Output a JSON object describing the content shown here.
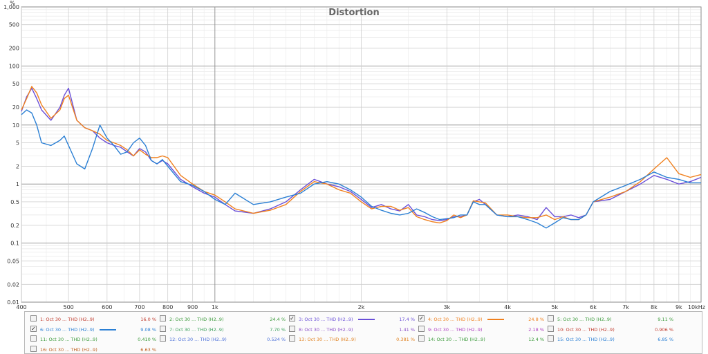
{
  "chart_data": {
    "type": "line",
    "title": "Distortion",
    "yunit": "%",
    "xscale": "log",
    "yscale": "log",
    "xlim": [
      400,
      10000
    ],
    "ylim": [
      0.01,
      1000
    ],
    "grid": true,
    "x_ticks": [
      {
        "v": 400,
        "t": "400"
      },
      {
        "v": 500,
        "t": "500"
      },
      {
        "v": 600,
        "t": "600"
      },
      {
        "v": 700,
        "t": "700"
      },
      {
        "v": 800,
        "t": "800"
      },
      {
        "v": 900,
        "t": "900"
      },
      {
        "v": 1000,
        "t": "1k"
      },
      {
        "v": 2000,
        "t": "2k"
      },
      {
        "v": 3000,
        "t": "3k"
      },
      {
        "v": 4000,
        "t": "4k"
      },
      {
        "v": 5000,
        "t": "5k"
      },
      {
        "v": 6000,
        "t": "6k"
      },
      {
        "v": 7000,
        "t": "7k"
      },
      {
        "v": 8000,
        "t": "8k"
      },
      {
        "v": 9000,
        "t": "9k"
      },
      {
        "v": 10000,
        "t": "10kHz"
      }
    ],
    "y_ticks": [
      {
        "v": 1000,
        "t": "1,000"
      },
      {
        "v": 500,
        "t": "500"
      },
      {
        "v": 200,
        "t": "200"
      },
      {
        "v": 100,
        "t": "100"
      },
      {
        "v": 50,
        "t": "50"
      },
      {
        "v": 20,
        "t": "20"
      },
      {
        "v": 10,
        "t": "10"
      },
      {
        "v": 5,
        "t": "5"
      },
      {
        "v": 2,
        "t": "2"
      },
      {
        "v": 1,
        "t": "1"
      },
      {
        "v": 0.5,
        "t": "0.5"
      },
      {
        "v": 0.2,
        "t": "0.2"
      },
      {
        "v": 0.1,
        "t": "0.1"
      },
      {
        "v": 0.05,
        "t": "0.05"
      },
      {
        "v": 0.02,
        "t": "0.02"
      },
      {
        "v": 0.01,
        "t": "0.01"
      }
    ],
    "series": [
      {
        "name": "3: Oct 30 ... THD (H2..9)",
        "color": "#6a4fd8",
        "x": [
          400,
          410,
          420,
          430,
          440,
          460,
          480,
          490,
          500,
          520,
          540,
          560,
          580,
          600,
          620,
          640,
          660,
          680,
          700,
          720,
          740,
          760,
          780,
          800,
          850,
          900,
          950,
          1000,
          1050,
          1100,
          1200,
          1300,
          1400,
          1500,
          1600,
          1700,
          1800,
          1900,
          2000,
          2100,
          2200,
          2300,
          2400,
          2500,
          2600,
          2700,
          2800,
          2900,
          3000,
          3100,
          3200,
          3300,
          3400,
          3500,
          3600,
          3800,
          4000,
          4200,
          4400,
          4600,
          4800,
          5000,
          5200,
          5400,
          5600,
          5800,
          6000,
          6500,
          7000,
          7500,
          8000,
          8500,
          9000,
          9500,
          10000
        ],
        "y": [
          17,
          30,
          42,
          28,
          18,
          12,
          20,
          32,
          42,
          12,
          9,
          8,
          6,
          5,
          4.5,
          4.2,
          3.5,
          3,
          4,
          3.5,
          2.5,
          2.2,
          2.5,
          2.2,
          1.2,
          0.9,
          0.7,
          0.6,
          0.45,
          0.35,
          0.32,
          0.38,
          0.5,
          0.8,
          1.2,
          1.0,
          0.9,
          0.75,
          0.55,
          0.4,
          0.45,
          0.38,
          0.35,
          0.45,
          0.3,
          0.28,
          0.25,
          0.24,
          0.25,
          0.28,
          0.28,
          0.3,
          0.5,
          0.55,
          0.45,
          0.3,
          0.28,
          0.3,
          0.28,
          0.25,
          0.4,
          0.28,
          0.28,
          0.3,
          0.27,
          0.3,
          0.5,
          0.55,
          0.75,
          1.0,
          1.4,
          1.2,
          1.0,
          1.1,
          1.3
        ]
      },
      {
        "name": "4: Oct 30 ... THD (H2..9)",
        "color": "#f0801e",
        "x": [
          400,
          410,
          420,
          430,
          440,
          460,
          480,
          490,
          500,
          520,
          540,
          560,
          580,
          600,
          620,
          640,
          660,
          680,
          700,
          720,
          740,
          760,
          780,
          800,
          850,
          900,
          950,
          1000,
          1050,
          1100,
          1200,
          1300,
          1400,
          1500,
          1600,
          1700,
          1800,
          1900,
          2000,
          2100,
          2200,
          2300,
          2400,
          2500,
          2600,
          2700,
          2800,
          2900,
          3000,
          3100,
          3200,
          3300,
          3400,
          3500,
          3600,
          3800,
          4000,
          4200,
          4400,
          4600,
          4800,
          5000,
          5200,
          5400,
          5600,
          5800,
          6000,
          6500,
          7000,
          7500,
          8000,
          8500,
          9000,
          9500,
          10000
        ],
        "y": [
          18,
          28,
          45,
          35,
          22,
          13,
          18,
          28,
          32,
          12,
          9,
          8,
          7,
          5.5,
          5,
          4.5,
          3.8,
          3,
          3.8,
          3.2,
          2.8,
          2.8,
          3,
          2.8,
          1.4,
          1.0,
          0.75,
          0.65,
          0.5,
          0.38,
          0.32,
          0.36,
          0.45,
          0.75,
          1.1,
          1.0,
          0.8,
          0.7,
          0.5,
          0.38,
          0.42,
          0.42,
          0.36,
          0.4,
          0.28,
          0.25,
          0.23,
          0.22,
          0.24,
          0.3,
          0.27,
          0.3,
          0.52,
          0.5,
          0.48,
          0.3,
          0.3,
          0.28,
          0.27,
          0.27,
          0.3,
          0.25,
          0.28,
          0.25,
          0.25,
          0.3,
          0.5,
          0.6,
          0.75,
          1.1,
          1.8,
          2.8,
          1.5,
          1.3,
          1.45
        ]
      },
      {
        "name": "6: Oct 30 ... THD (H2..9)",
        "color": "#2a7fd4",
        "x": [
          400,
          410,
          420,
          430,
          440,
          460,
          480,
          490,
          500,
          520,
          540,
          560,
          580,
          600,
          620,
          640,
          660,
          680,
          700,
          720,
          740,
          760,
          780,
          800,
          850,
          900,
          950,
          1000,
          1050,
          1100,
          1200,
          1300,
          1400,
          1500,
          1600,
          1700,
          1800,
          1900,
          2000,
          2100,
          2200,
          2300,
          2400,
          2500,
          2600,
          2700,
          2800,
          2900,
          3000,
          3100,
          3200,
          3300,
          3400,
          3500,
          3600,
          3800,
          4000,
          4200,
          4400,
          4600,
          4800,
          5000,
          5200,
          5400,
          5600,
          5800,
          6000,
          6500,
          7000,
          7500,
          8000,
          8500,
          9000,
          9500,
          10000
        ],
        "y": [
          15,
          18,
          16,
          10,
          5,
          4.5,
          5.5,
          6.5,
          4.5,
          2.2,
          1.8,
          4,
          10,
          6,
          4.5,
          3.2,
          3.5,
          5,
          6,
          4.5,
          2.5,
          2.2,
          2.6,
          2.0,
          1.1,
          0.95,
          0.75,
          0.55,
          0.45,
          0.7,
          0.45,
          0.5,
          0.6,
          0.7,
          1.0,
          1.1,
          1.0,
          0.8,
          0.6,
          0.42,
          0.36,
          0.32,
          0.3,
          0.32,
          0.38,
          0.33,
          0.28,
          0.25,
          0.26,
          0.27,
          0.3,
          0.3,
          0.5,
          0.45,
          0.45,
          0.3,
          0.28,
          0.28,
          0.25,
          0.22,
          0.18,
          0.22,
          0.27,
          0.25,
          0.25,
          0.3,
          0.5,
          0.75,
          0.95,
          1.2,
          1.6,
          1.3,
          1.2,
          1.05,
          1.05
        ]
      }
    ]
  },
  "legend": {
    "items": [
      {
        "label": "1: Oct 30 ... THD (H2..9)",
        "value": "16.0 %",
        "color": "#c0392b",
        "checked": false,
        "showline": false
      },
      {
        "label": "2: Oct 30 ... THD (H2..9)",
        "value": "24.4 %",
        "color": "#3a9a3a",
        "checked": false,
        "showline": false
      },
      {
        "label": "3: Oct 30 ... THD (H2..9)",
        "value": "17.4 %",
        "color": "#6a4fd8",
        "checked": true,
        "showline": true
      },
      {
        "label": "4: Oct 30 ... THD (H2..9)",
        "value": "24.8 %",
        "color": "#f0801e",
        "checked": true,
        "showline": true
      },
      {
        "label": "5: Oct 30 ... THD (H2..9)",
        "value": "9.11 %",
        "color": "#3a9a3a",
        "checked": false,
        "showline": false
      },
      {
        "label": "6: Oct 30 ... THD (H2..9)",
        "value": "9.08 %",
        "color": "#2a7fd4",
        "checked": true,
        "showline": true
      },
      {
        "label": "7: Oct 30 ... THD (H2..9)",
        "value": "7.70 %",
        "color": "#3aa05a",
        "checked": false,
        "showline": false
      },
      {
        "label": "8: Oct 30 ... THD (H2..9)",
        "value": "1.41 %",
        "color": "#8a4fc8",
        "checked": false,
        "showline": false
      },
      {
        "label": "9: Oct 30 ... THD (H2..9)",
        "value": "2.18 %",
        "color": "#b040c0",
        "checked": false,
        "showline": false
      },
      {
        "label": "10: Oct 30 ... THD (H2..9)",
        "value": "0.906 %",
        "color": "#c0392b",
        "checked": false,
        "showline": false
      },
      {
        "label": "11: Oct 30 ... THD (H2..9)",
        "value": "0.410 %",
        "color": "#3a9a3a",
        "checked": false,
        "showline": false
      },
      {
        "label": "12: Oct 30 ... THD (H2..9)",
        "value": "0.524 %",
        "color": "#4a6fd8",
        "checked": false,
        "showline": false
      },
      {
        "label": "13: Oct 30 ... THD (H2..9)",
        "value": "0.381 %",
        "color": "#e0801e",
        "checked": false,
        "showline": false
      },
      {
        "label": "14: Oct 30 ... THD (H2..9)",
        "value": "12.4 %",
        "color": "#3a9a3a",
        "checked": false,
        "showline": false
      },
      {
        "label": "15: Oct 30 ... THD (H2..9)",
        "value": "6.85 %",
        "color": "#2a7fd4",
        "checked": false,
        "showline": false
      },
      {
        "label": "16: Oct 30 ... THD (H2..9)",
        "value": "6.63 %",
        "color": "#c0601e",
        "checked": false,
        "showline": false
      }
    ]
  }
}
